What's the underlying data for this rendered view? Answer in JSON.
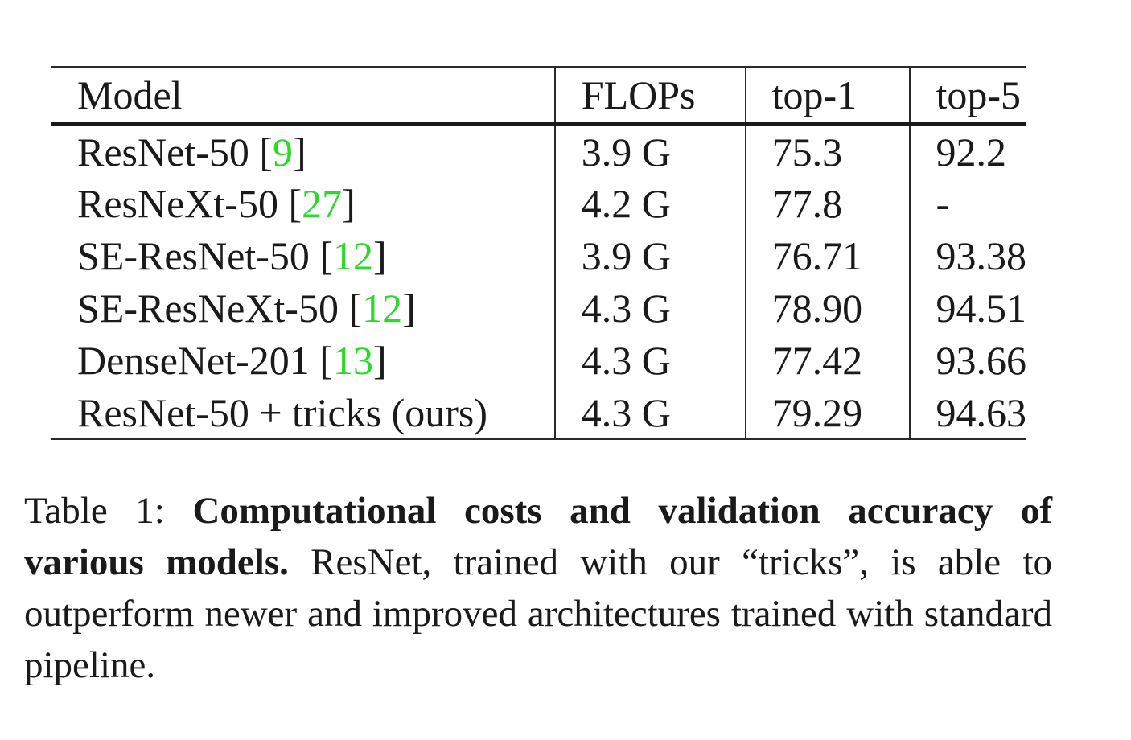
{
  "table": {
    "headers": {
      "model": "Model",
      "flops": "FLOPs",
      "top1": "top-1",
      "top5": "top-5"
    },
    "rows": [
      {
        "model": "ResNet-50",
        "cite": "9",
        "flops": "3.9 G",
        "top1": "75.3",
        "top5": "92.2"
      },
      {
        "model": "ResNeXt-50",
        "cite": "27",
        "flops": "4.2 G",
        "top1": "77.8",
        "top5": "-"
      },
      {
        "model": "SE-ResNet-50",
        "cite": "12",
        "flops": "3.9 G",
        "top1": "76.71",
        "top5": "93.38"
      },
      {
        "model": "SE-ResNeXt-50",
        "cite": "12",
        "flops": "4.3 G",
        "top1": "78.90",
        "top5": "94.51"
      },
      {
        "model": "DenseNet-201",
        "cite": "13",
        "flops": "4.3 G",
        "top1": "77.42",
        "top5": "93.66"
      },
      {
        "model": "ResNet-50 + tricks (ours)",
        "flops": "4.3 G",
        "top1": "79.29",
        "top5": "94.63"
      }
    ],
    "citation_color": "#2bd92b"
  },
  "caption": {
    "label": "Table 1:",
    "title": "Computational costs and validation accuracy of various models.",
    "body": "ResNet, trained with our “tricks”, is able to outperform newer and improved architectures trained with standard pipeline."
  }
}
